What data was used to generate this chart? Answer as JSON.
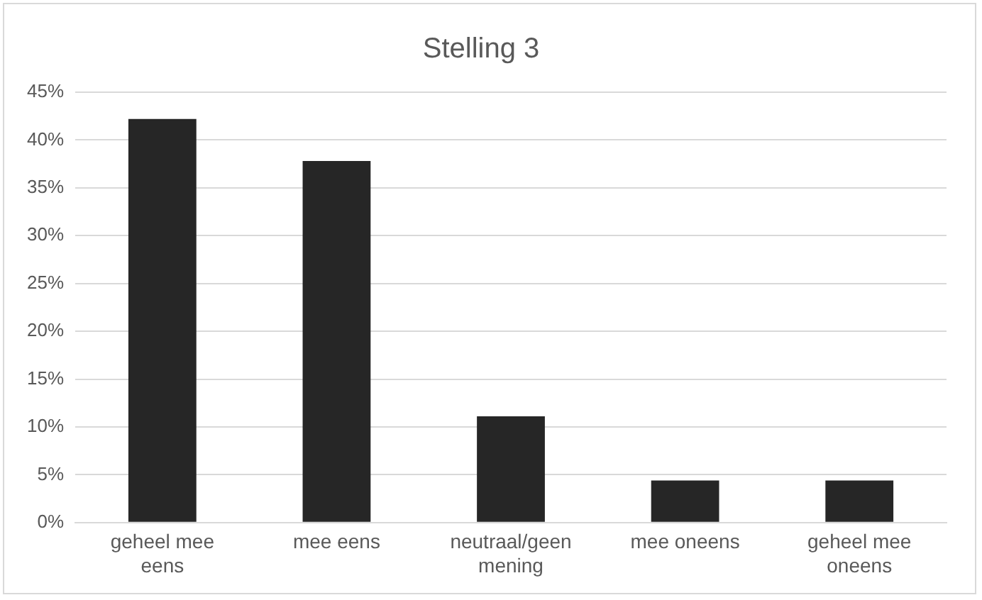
{
  "chart_data": {
    "type": "bar",
    "title": "Stelling 3",
    "categories": [
      "geheel mee eens",
      "mee eens",
      "neutraal/geen mening",
      "mee oneens",
      "geheel mee oneens"
    ],
    "values": [
      42.2,
      37.8,
      11.1,
      4.4,
      4.4
    ],
    "color": "#262626",
    "ylim": [
      0,
      45
    ],
    "yticks": [
      {
        "value": 0,
        "label": "0%"
      },
      {
        "value": 5,
        "label": "5%"
      },
      {
        "value": 10,
        "label": "10%"
      },
      {
        "value": 15,
        "label": "15%"
      },
      {
        "value": 20,
        "label": "20%"
      },
      {
        "value": 25,
        "label": "25%"
      },
      {
        "value": 30,
        "label": "30%"
      },
      {
        "value": 35,
        "label": "35%"
      },
      {
        "value": 40,
        "label": "40%"
      },
      {
        "value": 45,
        "label": "45%"
      }
    ],
    "grid": "y",
    "legend": false
  }
}
